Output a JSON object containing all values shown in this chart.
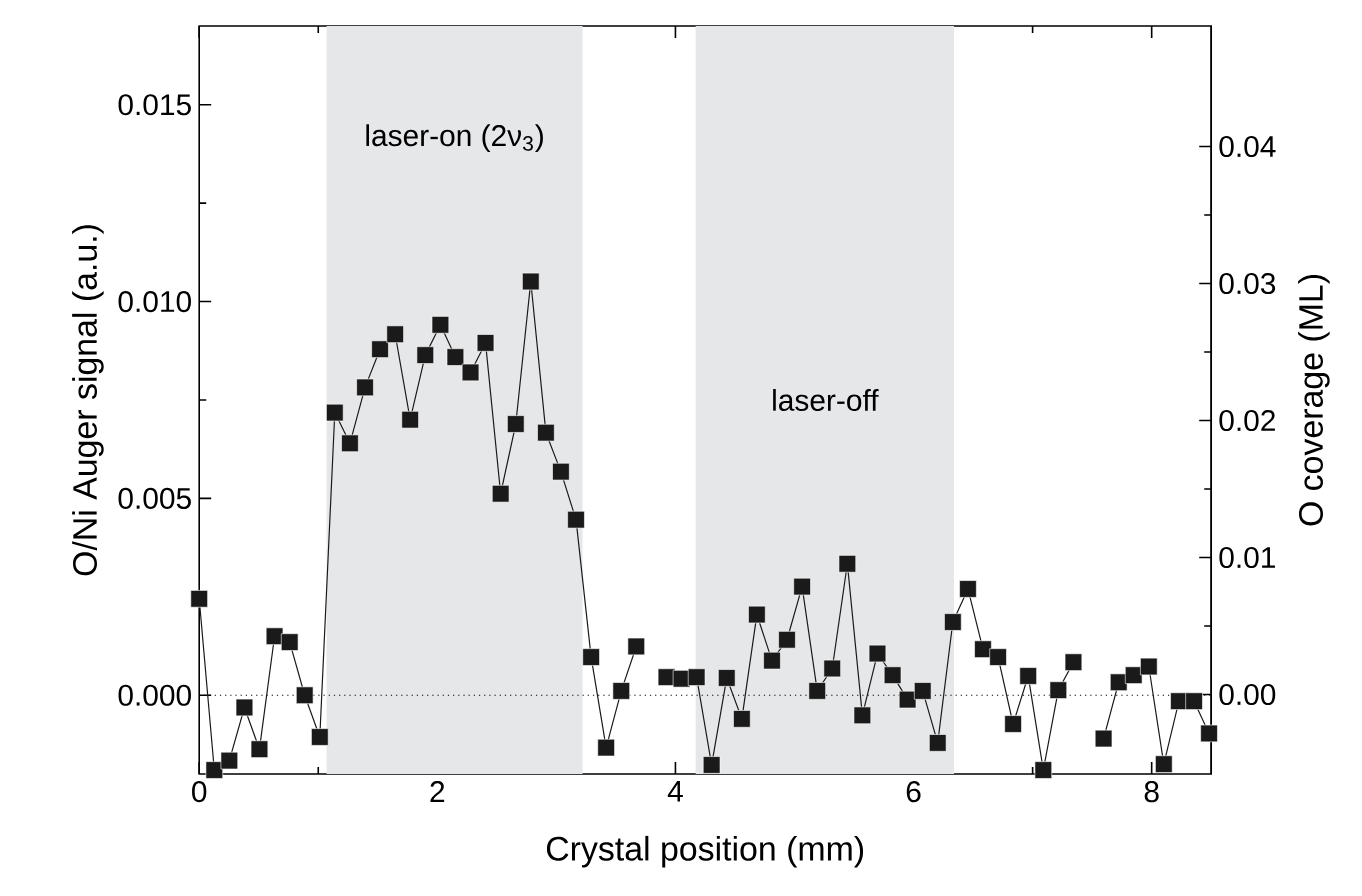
{
  "chart_data": {
    "type": "line",
    "xlabel": "Crystal position (mm)",
    "ylabel": "O/Ni Auger signal (a.u.)",
    "y2label": "O coverage (ML)",
    "xlim": [
      0,
      8.5
    ],
    "xticks": [
      0,
      2,
      4,
      6,
      8
    ],
    "ylim": [
      -0.002,
      0.017
    ],
    "yticks": [
      {
        "value": 0,
        "label": "0.000"
      },
      {
        "value": 0.005,
        "label": "0.005"
      },
      {
        "value": 0.01,
        "label": "0.010"
      },
      {
        "value": 0.015,
        "label": "0.015"
      }
    ],
    "y2lim": [
      -0.0058,
      0.0488
    ],
    "y2ticks": [
      {
        "value": 0,
        "label": "0.00"
      },
      {
        "value": 0.01,
        "label": "0.01"
      },
      {
        "value": 0.02,
        "label": "0.02"
      },
      {
        "value": 0.03,
        "label": "0.03"
      },
      {
        "value": 0.04,
        "label": "0.04"
      }
    ],
    "marker": "square",
    "line_style": "solid",
    "ref_lines": [
      {
        "axis": "y",
        "value": 0,
        "line_style": "dotted",
        "color": "#000000"
      }
    ],
    "bands": [
      {
        "axis": "x",
        "from": 1.07,
        "to": 3.22,
        "label": "laser-on (2ν$_{3}$)",
        "color": "#e6e7e9"
      },
      {
        "axis": "x",
        "from": 4.17,
        "to": 6.34,
        "label": "laser-off",
        "color": "#e6e7e9"
      }
    ],
    "series": [
      {
        "color": "#1a1a1a",
        "x": [
          0,
          0.127,
          0.253,
          0.38,
          0.506,
          0.633,
          0.76,
          0.886,
          1.013,
          1.139,
          1.266,
          1.393,
          1.519,
          1.646,
          1.772,
          1.899,
          2.026,
          2.152,
          2.279,
          2.405,
          2.532,
          2.659,
          2.785,
          2.912,
          3.038,
          3.165,
          3.292,
          3.418,
          3.545,
          3.671,
          3.798,
          3.925,
          4.051,
          4.178,
          4.304,
          4.431,
          4.558,
          4.684,
          4.811,
          4.937,
          5.064,
          5.191,
          5.317,
          5.444,
          5.57,
          5.697,
          5.824,
          5.95,
          6.077,
          6.203,
          6.33,
          6.457,
          6.583,
          6.71,
          6.836,
          6.963,
          7.09,
          7.216,
          7.343,
          7.469,
          7.596,
          7.723,
          7.849,
          7.976,
          8.102,
          8.229,
          8.356,
          8.482
        ],
        "values": [
          0.00245,
          -0.0019,
          -0.00166,
          -0.00031,
          -0.00137,
          0.0015,
          0.00135,
          0.0,
          -0.00106,
          0.00718,
          0.0064,
          0.00782,
          0.00879,
          0.00917,
          0.007,
          0.00864,
          0.00941,
          0.00859,
          0.0082,
          0.00895,
          0.00512,
          0.00689,
          0.01051,
          0.00667,
          0.00568,
          0.00446,
          0.00097,
          -0.00133,
          0.00011,
          0.00124,
          null,
          0.00046,
          0.00042,
          0.00046,
          -0.00177,
          0.00044,
          -0.0006,
          0.00205,
          0.00088,
          0.00141,
          0.00276,
          0.00011,
          0.00068,
          0.00334,
          -0.00051,
          0.00106,
          0.00051,
          -0.00011,
          0.00011,
          -0.00121,
          0.00186,
          0.0027,
          0.00117,
          0.00097,
          -0.00073,
          0.00049,
          -0.0019,
          0.00013,
          0.00084,
          null,
          -0.0011,
          0.00033,
          0.00051,
          0.00073,
          -0.00175,
          -0.00015,
          -0.00015,
          -0.00097
        ]
      }
    ]
  }
}
